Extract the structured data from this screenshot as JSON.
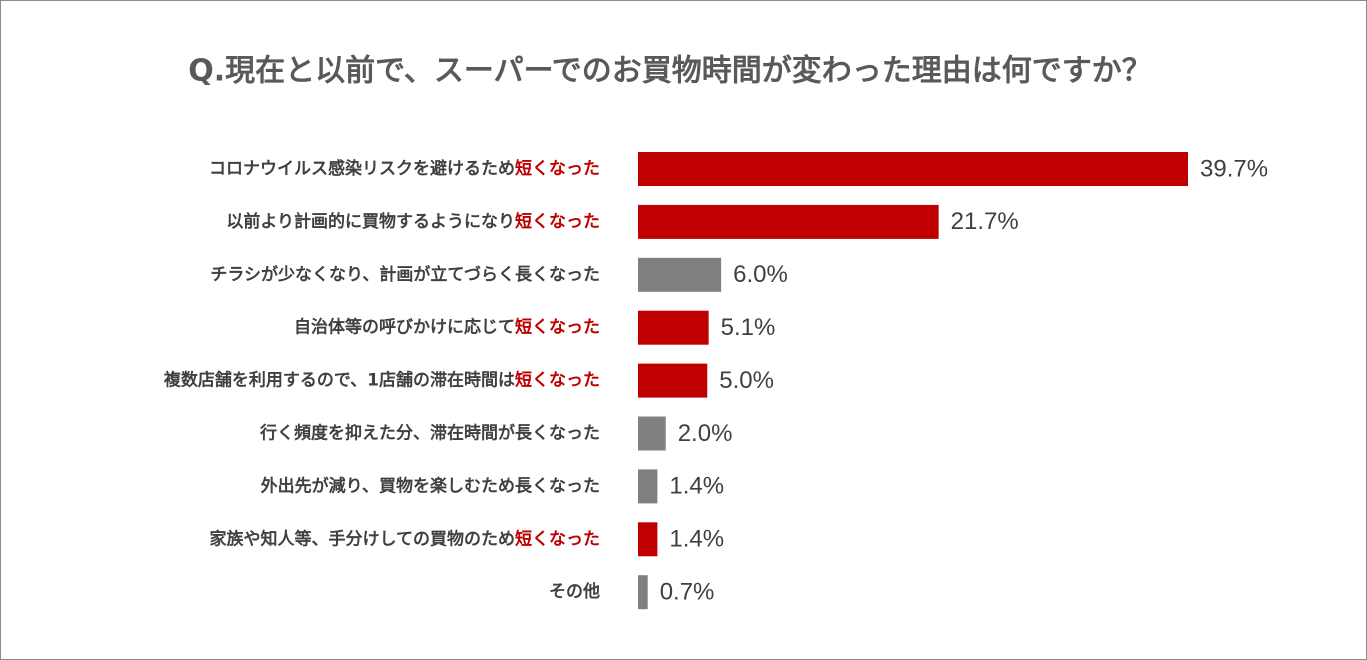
{
  "chart_data": {
    "type": "bar",
    "orientation": "horizontal",
    "title": "Q.現在と以前で、スーパーでのお買物時間が変わった理由は何ですか？",
    "categories": [
      [
        "コロナウイルス感染リスクを避けるため",
        "短くなった"
      ],
      [
        "以前より計画的に買物するようになり",
        "短くなった"
      ],
      [
        "チラシが少なくなり、計画が立てづらく長くなった"
      ],
      [
        "自治体等の呼びかけに応じて",
        "短くなった"
      ],
      [
        "複数店舗を利用するので、1店舗の滞在時間は",
        "短くなった"
      ],
      [
        "行く頻度を抑えた分、滞在時間が長くなった"
      ],
      [
        "外出先が減り、買物を楽しむため長くなった"
      ],
      [
        "家族や知人等、手分けしての買物のため",
        "短くなった"
      ],
      [
        "その他"
      ]
    ],
    "highlight_color": "#c00000",
    "values": [
      39.7,
      21.7,
      6.0,
      5.1,
      5.0,
      2.0,
      1.4,
      1.4,
      0.7
    ],
    "value_labels": [
      "39.7%",
      "21.7%",
      "6.0%",
      "5.1%",
      "5.0%",
      "2.0%",
      "1.4%",
      "1.4%",
      "0.7%"
    ],
    "colors": [
      "#c00000",
      "#c00000",
      "#808080",
      "#c00000",
      "#c00000",
      "#808080",
      "#808080",
      "#c00000",
      "#808080"
    ]
  }
}
